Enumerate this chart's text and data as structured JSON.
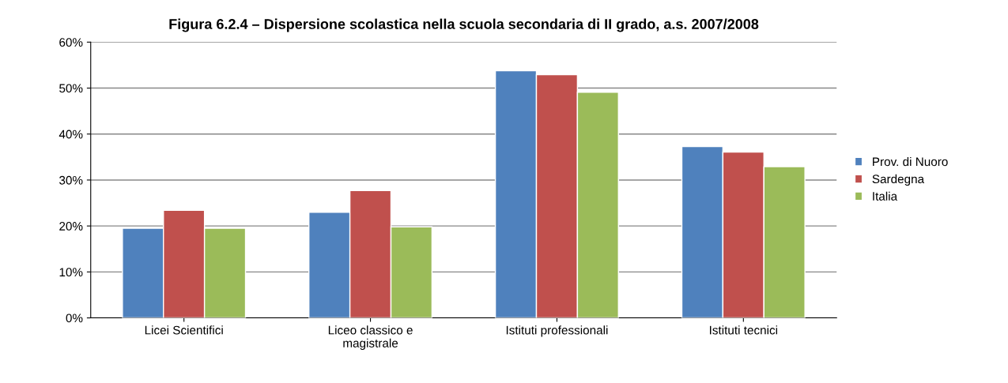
{
  "chart_data": {
    "type": "bar",
    "title": "Figura 6.2.4 – Dispersione scolastica nella scuola secondaria di II grado, a.s. 2007/2008",
    "categories": [
      "Licei Scientifici",
      "Liceo classico e\nmagistrale",
      "Istituti professionali",
      "Istituti tecnici"
    ],
    "series": [
      {
        "name": "Prov. di Nuoro",
        "color": "#4f81bd",
        "values": [
          19.5,
          23.0,
          53.8,
          37.3
        ]
      },
      {
        "name": "Sardegna",
        "color": "#c0504d",
        "values": [
          23.4,
          27.7,
          52.9,
          36.1
        ]
      },
      {
        "name": "Italia",
        "color": "#9bbb59",
        "values": [
          19.5,
          19.8,
          49.1,
          32.9
        ]
      }
    ],
    "ylim": [
      0,
      60
    ],
    "yticks": [
      {
        "value": 0,
        "label": "0%"
      },
      {
        "value": 10,
        "label": "10%"
      },
      {
        "value": 20,
        "label": "20%"
      },
      {
        "value": 30,
        "label": "30%"
      },
      {
        "value": 40,
        "label": "40%"
      },
      {
        "value": 50,
        "label": "50%"
      },
      {
        "value": 60,
        "label": "60%"
      }
    ],
    "grid": "y",
    "legend": "right"
  }
}
